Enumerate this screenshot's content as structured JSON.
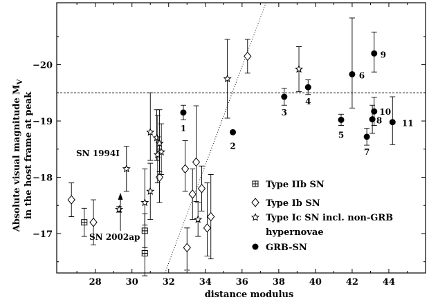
{
  "chart_data": {
    "type": "scatter",
    "title": "",
    "xlabel": "distance modulus",
    "ylabel_line1": "Absolute visual magnitude M",
    "ylabel_subscript": "V",
    "ylabel_line2": "in the host frame at peak",
    "xlim": [
      25.9,
      46.0
    ],
    "ylim": [
      -16.3,
      -21.1
    ],
    "y_inverted": true,
    "grid": false,
    "x_ticks": [
      28,
      30,
      32,
      34,
      36,
      38,
      40,
      42,
      44
    ],
    "y_ticks": [
      -17,
      -18,
      -19,
      -20
    ],
    "reference_line_y": -19.5,
    "trend_line": {
      "x": [
        31.8,
        37.3
      ],
      "y": [
        -16.3,
        -21.1
      ]
    },
    "legend_position": "bottom-right",
    "series": [
      {
        "name": "Type IIb SN",
        "marker": "boxed-plus",
        "points": [
          {
            "x": 27.4,
            "y": -17.2,
            "err": [
              0.25,
              0.25
            ]
          },
          {
            "x": 30.7,
            "y": -17.05,
            "err": [
              0.3,
              0.3
            ]
          },
          {
            "x": 30.7,
            "y": -16.65,
            "err": [
              0.4,
              0.4
            ]
          }
        ]
      },
      {
        "name": "Type Ib SN",
        "marker": "diamond",
        "points": [
          {
            "x": 26.7,
            "y": -17.6,
            "err": [
              0.3,
              0.3
            ]
          },
          {
            "x": 27.9,
            "y": -17.2,
            "err": [
              0.4,
              0.4
            ]
          },
          {
            "x": 31.5,
            "y": -18.0,
            "err": [
              0.45,
              0.5
            ]
          },
          {
            "x": 32.9,
            "y": -18.15,
            "err": [
              0.4,
              0.5
            ]
          },
          {
            "x": 33.0,
            "y": -16.75,
            "err": [
              0.4,
              0.35
            ]
          },
          {
            "x": 33.3,
            "y": -17.7,
            "err": [
              0.45,
              0.45
            ]
          },
          {
            "x": 33.5,
            "y": -18.27,
            "err": [
              0.7,
              1.0
            ]
          },
          {
            "x": 33.8,
            "y": -17.8,
            "err": [
              0.4,
              0.4
            ]
          },
          {
            "x": 34.1,
            "y": -17.1,
            "err": [
              0.5,
              0.8
            ]
          },
          {
            "x": 34.3,
            "y": -17.3,
            "err": [
              0.75,
              0.75
            ]
          },
          {
            "x": 36.3,
            "y": -20.15,
            "err": [
              0.3,
              0.3
            ]
          }
        ]
      },
      {
        "name": "Type Ic SN incl. non-GRB hypernovae",
        "legend_line1": "Type Ic SN incl. non-GRB",
        "legend_line2": "hypernovae",
        "marker": "star",
        "points": [
          {
            "x": 29.3,
            "y": -17.43,
            "err": [
              0.05,
              0.05
            ]
          },
          {
            "x": 29.7,
            "y": -18.15,
            "err": [
              0.4,
              0.4
            ]
          },
          {
            "x": 30.7,
            "y": -17.55,
            "err": [
              0.4,
              0.6
            ]
          },
          {
            "x": 31.0,
            "y": -18.8,
            "err": [
              0.5,
              0.7
            ]
          },
          {
            "x": 31.0,
            "y": -17.75,
            "err": [
              0.5,
              0.5
            ]
          },
          {
            "x": 31.35,
            "y": -18.7,
            "err": [
              0.4,
              0.5
            ]
          },
          {
            "x": 31.4,
            "y": -18.4,
            "err": [
              0.5,
              0.7
            ]
          },
          {
            "x": 31.5,
            "y": -18.6,
            "err": [
              0.5,
              0.6
            ]
          },
          {
            "x": 31.6,
            "y": -18.45,
            "err": [
              0.4,
              0.5
            ]
          },
          {
            "x": 33.6,
            "y": -17.25,
            "err": [
              0.3,
              0.3
            ]
          },
          {
            "x": 35.2,
            "y": -19.75,
            "err": [
              0.7,
              0.7
            ]
          },
          {
            "x": 39.1,
            "y": -19.92,
            "err": [
              0.4,
              0.4
            ]
          }
        ]
      },
      {
        "name": "GRB-SN",
        "marker": "filled-circle",
        "points": [
          {
            "x": 32.8,
            "y": -19.15,
            "err": [
              0.13,
              0.13
            ],
            "label": "1"
          },
          {
            "x": 35.5,
            "y": -18.8,
            "err": [
              0,
              0
            ],
            "label": "2"
          },
          {
            "x": 38.3,
            "y": -19.43,
            "err": [
              0.15,
              0.15
            ],
            "label": "3"
          },
          {
            "x": 39.6,
            "y": -19.6,
            "err": [
              0.13,
              0.13
            ],
            "label": "4"
          },
          {
            "x": 41.4,
            "y": -19.02,
            "err": [
              0.1,
              0.1
            ],
            "label": "5"
          },
          {
            "x": 42.0,
            "y": -19.83,
            "err": [
              0.6,
              1.0
            ],
            "label": "6"
          },
          {
            "x": 42.8,
            "y": -18.72,
            "err": [
              0.15,
              0.15
            ],
            "label": "7"
          },
          {
            "x": 43.1,
            "y": -19.03,
            "err": [
              0.25,
              0.25
            ],
            "label": "8"
          },
          {
            "x": 43.2,
            "y": -20.2,
            "err": [
              0.33,
              0.38
            ],
            "label": "9"
          },
          {
            "x": 43.2,
            "y": -19.17,
            "err": [
              0.25,
              0.25
            ],
            "label": "10"
          },
          {
            "x": 44.2,
            "y": -18.98,
            "err": [
              0.4,
              0.45
            ],
            "label": "11"
          }
        ]
      }
    ],
    "annotations": [
      {
        "text": "SN 1994I",
        "near_x": 29.7,
        "near_y": -18.15
      },
      {
        "text": "SN 2002ap",
        "near_x": 29.3,
        "near_y": -17.43,
        "arrow": true
      }
    ]
  }
}
